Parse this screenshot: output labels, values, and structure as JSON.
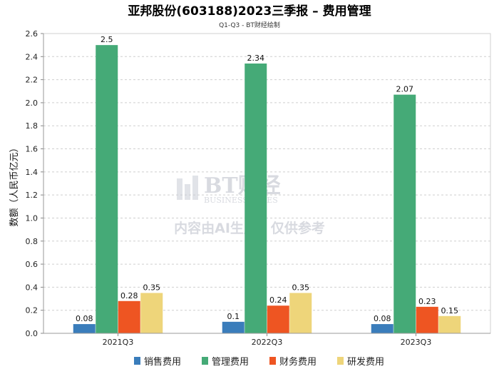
{
  "chart_data": {
    "type": "bar",
    "title": "亚邦股份(603188)2023三季报 – 费用管理",
    "subtitle": "Q1-Q3 - BT财经绘制",
    "ylabel": "数额（人民币亿元）",
    "xlabel": "",
    "categories": [
      "2021Q3",
      "2022Q3",
      "2023Q3"
    ],
    "ylim": [
      0,
      2.6
    ],
    "yticks": [
      "0.0",
      "0.2",
      "0.4",
      "0.6",
      "0.8",
      "1.0",
      "1.2",
      "1.4",
      "1.6",
      "1.8",
      "2.0",
      "2.2",
      "2.4",
      "2.6"
    ],
    "grid": true,
    "legend_position": "bottom",
    "series": [
      {
        "name": "销售费用",
        "color": "#3a7dbb",
        "values": [
          0.08,
          0.1,
          0.08
        ],
        "labels": [
          "0.08",
          "0.1",
          "0.08"
        ]
      },
      {
        "name": "管理费用",
        "color": "#45aa77",
        "values": [
          2.5,
          2.34,
          2.07
        ],
        "labels": [
          "2.5",
          "2.34",
          "2.07"
        ]
      },
      {
        "name": "财务费用",
        "color": "#ee5522",
        "values": [
          0.28,
          0.24,
          0.23
        ],
        "labels": [
          "0.28",
          "0.24",
          "0.23"
        ]
      },
      {
        "name": "研发费用",
        "color": "#eed57a",
        "values": [
          0.35,
          0.35,
          0.15
        ],
        "labels": [
          "0.35",
          "0.35",
          "0.15"
        ]
      }
    ]
  },
  "watermark": {
    "brand": "BT财经",
    "brand_sub": "BUSINESS TIMES",
    "notice": "内容由AI生成，仅供参考"
  }
}
